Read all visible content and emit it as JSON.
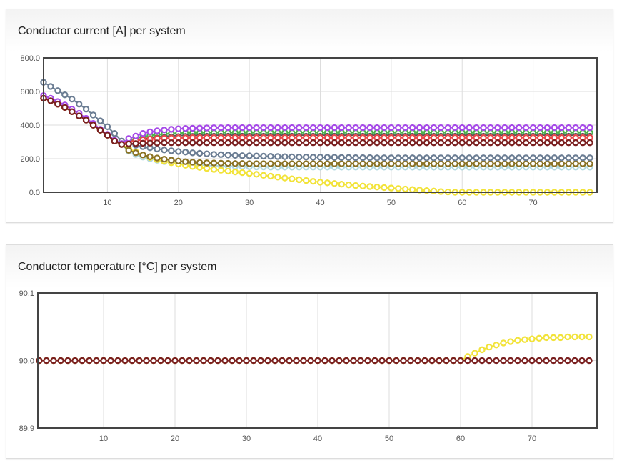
{
  "chart_data": [
    {
      "type": "line",
      "title": "Conductor current [A] per system",
      "x": [
        1,
        2,
        3,
        4,
        5,
        6,
        7,
        8,
        9,
        10,
        11,
        12,
        13,
        14,
        15,
        16,
        17,
        18,
        19,
        20,
        21,
        22,
        23,
        24,
        25,
        26,
        27,
        28,
        29,
        30,
        31,
        32,
        33,
        34,
        35,
        36,
        37,
        38,
        39,
        40,
        41,
        42,
        43,
        44,
        45,
        46,
        47,
        48,
        49,
        50,
        51,
        52,
        53,
        54,
        55,
        56,
        57,
        58,
        59,
        60,
        61,
        62,
        63,
        64,
        65,
        66,
        67,
        68,
        69,
        70,
        71,
        72,
        73,
        74,
        75,
        76,
        77,
        78
      ],
      "xlim": [
        1,
        79
      ],
      "ylim": [
        0,
        800
      ],
      "x_ticks": [
        "10",
        "20",
        "30",
        "40",
        "50",
        "60",
        "70"
      ],
      "y_ticks": [
        "0.0",
        "200.0",
        "400.0",
        "600.0",
        "800.0"
      ],
      "grid": true,
      "series": [
        {
          "color": "#b0d8e0",
          "values": [
            560,
            545,
            525,
            505,
            480,
            455,
            430,
            400,
            370,
            340,
            305,
            285,
            245,
            225,
            210,
            200,
            191,
            183,
            177,
            172,
            168,
            165,
            162,
            160,
            158,
            156,
            155,
            154,
            153,
            152,
            151,
            151,
            150,
            150,
            150,
            150,
            150,
            150,
            150,
            150,
            150,
            150,
            150,
            150,
            150,
            150,
            150,
            150,
            150,
            150,
            150,
            150,
            150,
            150,
            150,
            150,
            150,
            150,
            150,
            150,
            150,
            150,
            150,
            150,
            150,
            150,
            150,
            150,
            150,
            150,
            150,
            150,
            150,
            150,
            150,
            150,
            150,
            150
          ]
        },
        {
          "color": "#f2e33a",
          "values": [
            560,
            545,
            525,
            505,
            480,
            455,
            430,
            400,
            370,
            340,
            305,
            285,
            260,
            240,
            222,
            207,
            195,
            185,
            176,
            168,
            161,
            154,
            148,
            142,
            136,
            131,
            126,
            121,
            117,
            112,
            107,
            101,
            96,
            90,
            85,
            80,
            75,
            70,
            65,
            60,
            56,
            52,
            48,
            44,
            40,
            37,
            34,
            31,
            28,
            25,
            22,
            19,
            16,
            13,
            10,
            7,
            4,
            2,
            0,
            0,
            0,
            0,
            0,
            0,
            0,
            0,
            0,
            0,
            0,
            0,
            0,
            0,
            0,
            0,
            0,
            0,
            0,
            0
          ]
        },
        {
          "color": "#8a7224",
          "values": [
            560,
            545,
            525,
            505,
            480,
            455,
            430,
            400,
            370,
            340,
            305,
            285,
            250,
            235,
            222,
            212,
            204,
            197,
            191,
            186,
            182,
            179,
            177,
            175,
            174,
            173,
            172,
            171,
            171,
            170,
            170,
            170,
            170,
            170,
            170,
            170,
            170,
            170,
            170,
            170,
            170,
            170,
            170,
            170,
            170,
            170,
            170,
            170,
            170,
            170,
            170,
            170,
            170,
            170,
            170,
            170,
            170,
            170,
            170,
            170,
            170,
            170,
            170,
            170,
            170,
            170,
            170,
            170,
            170,
            170,
            170,
            170,
            170,
            170,
            170,
            170,
            170,
            170
          ]
        },
        {
          "color": "#6b7d93",
          "values": [
            655,
            630,
            605,
            580,
            555,
            525,
            495,
            460,
            425,
            390,
            350,
            305,
            290,
            280,
            272,
            265,
            258,
            252,
            247,
            243,
            239,
            235,
            232,
            229,
            226,
            224,
            222,
            220,
            218,
            217,
            216,
            215,
            214,
            213,
            212,
            211,
            210,
            210,
            209,
            209,
            208,
            208,
            207,
            207,
            206,
            206,
            206,
            205,
            205,
            205,
            205,
            205,
            205,
            205,
            205,
            205,
            205,
            205,
            205,
            205,
            205,
            205,
            205,
            205,
            205,
            205,
            205,
            205,
            205,
            205,
            205,
            205,
            205,
            205,
            205,
            205,
            205,
            205
          ]
        },
        {
          "color": "#4cb34c",
          "values": [
            560,
            545,
            525,
            505,
            480,
            455,
            430,
            400,
            370,
            340,
            305,
            288,
            305,
            320,
            330,
            338,
            343,
            347,
            350,
            352,
            353,
            354,
            354,
            355,
            355,
            355,
            355,
            355,
            355,
            355,
            355,
            355,
            355,
            355,
            355,
            355,
            355,
            355,
            355,
            355,
            355,
            355,
            355,
            355,
            355,
            355,
            355,
            355,
            355,
            355,
            355,
            355,
            355,
            355,
            355,
            355,
            355,
            355,
            355,
            355,
            355,
            355,
            355,
            355,
            355,
            355,
            355,
            355,
            355,
            355,
            355,
            355,
            355,
            355,
            355,
            355,
            355,
            355
          ]
        },
        {
          "color": "#555555",
          "small": true,
          "values": [
            560,
            545,
            525,
            505,
            480,
            455,
            430,
            400,
            370,
            340,
            305,
            288,
            300,
            310,
            318,
            325,
            330,
            333,
            336,
            338,
            339,
            339,
            340,
            340,
            340,
            340,
            340,
            340,
            340,
            340,
            340,
            340,
            340,
            340,
            340,
            340,
            340,
            340,
            340,
            340,
            340,
            340,
            340,
            340,
            340,
            340,
            340,
            340,
            340,
            340,
            340,
            340,
            340,
            340,
            340,
            340,
            340,
            340,
            340,
            340,
            340,
            340,
            340,
            340,
            340,
            340,
            340,
            340,
            340,
            340,
            340,
            340,
            340,
            340,
            340,
            340,
            340,
            340
          ]
        },
        {
          "color": "#e8474a",
          "values": [
            560,
            545,
            525,
            505,
            480,
            455,
            430,
            400,
            370,
            340,
            305,
            288,
            300,
            308,
            313,
            317,
            320,
            322,
            323,
            324,
            324,
            325,
            325,
            325,
            325,
            325,
            325,
            325,
            325,
            325,
            325,
            325,
            325,
            325,
            325,
            325,
            325,
            325,
            325,
            325,
            325,
            325,
            325,
            325,
            325,
            325,
            325,
            325,
            325,
            325,
            325,
            325,
            325,
            325,
            325,
            325,
            325,
            325,
            325,
            325,
            325,
            325,
            325,
            325,
            325,
            325,
            325,
            325,
            325,
            325,
            325,
            325,
            325,
            325,
            325,
            325,
            325,
            325
          ]
        },
        {
          "color": "#a64ae8",
          "values": [
            575,
            560,
            540,
            520,
            495,
            470,
            440,
            410,
            375,
            345,
            310,
            290,
            320,
            335,
            350,
            360,
            366,
            371,
            375,
            378,
            380,
            381,
            382,
            383,
            384,
            384,
            385,
            385,
            385,
            385,
            385,
            385,
            385,
            385,
            385,
            385,
            385,
            385,
            385,
            385,
            385,
            385,
            385,
            385,
            385,
            385,
            385,
            385,
            385,
            385,
            385,
            385,
            385,
            385,
            385,
            385,
            385,
            385,
            385,
            385,
            385,
            385,
            385,
            385,
            385,
            385,
            385,
            385,
            385,
            385,
            385,
            385,
            385,
            385,
            385,
            385,
            385,
            385
          ]
        },
        {
          "color": "#7a2020",
          "values": [
            560,
            545,
            525,
            505,
            480,
            455,
            430,
            400,
            370,
            340,
            305,
            285,
            288,
            290,
            292,
            293,
            294,
            295,
            295,
            295,
            295,
            295,
            295,
            295,
            295,
            295,
            295,
            295,
            295,
            295,
            295,
            295,
            295,
            295,
            295,
            295,
            295,
            295,
            295,
            295,
            295,
            295,
            295,
            295,
            295,
            295,
            295,
            295,
            295,
            295,
            295,
            295,
            295,
            295,
            295,
            295,
            295,
            295,
            295,
            295,
            295,
            295,
            295,
            295,
            295,
            295,
            295,
            295,
            295,
            295,
            295,
            295,
            295,
            295,
            295,
            295,
            295,
            295
          ]
        }
      ]
    },
    {
      "type": "line",
      "title": "Conductor temperature [°C] per system",
      "x": [
        1,
        2,
        3,
        4,
        5,
        6,
        7,
        8,
        9,
        10,
        11,
        12,
        13,
        14,
        15,
        16,
        17,
        18,
        19,
        20,
        21,
        22,
        23,
        24,
        25,
        26,
        27,
        28,
        29,
        30,
        31,
        32,
        33,
        34,
        35,
        36,
        37,
        38,
        39,
        40,
        41,
        42,
        43,
        44,
        45,
        46,
        47,
        48,
        49,
        50,
        51,
        52,
        53,
        54,
        55,
        56,
        57,
        58,
        59,
        60,
        61,
        62,
        63,
        64,
        65,
        66,
        67,
        68,
        69,
        70,
        71,
        72,
        73,
        74,
        75,
        76,
        77,
        78
      ],
      "xlim": [
        0.8,
        79.1
      ],
      "ylim": [
        89.9,
        90.1
      ],
      "x_ticks": [
        "10",
        "20",
        "30",
        "40",
        "50",
        "60",
        "70"
      ],
      "y_ticks": [
        "89.9",
        "90.0",
        "90.1"
      ],
      "grid": true,
      "series": [
        {
          "color": "#f2e33a",
          "values": [
            90,
            90,
            90,
            90,
            90,
            90,
            90,
            90,
            90,
            90,
            90,
            90,
            90,
            90,
            90,
            90,
            90,
            90,
            90,
            90,
            90,
            90,
            90,
            90,
            90,
            90,
            90,
            90,
            90,
            90,
            90,
            90,
            90,
            90,
            90,
            90,
            90,
            90,
            90,
            90,
            90,
            90,
            90,
            90,
            90,
            90,
            90,
            90,
            90,
            90,
            90,
            90,
            90,
            90,
            90,
            90,
            90,
            90,
            90,
            90,
            90.006,
            90.011,
            90.016,
            90.02,
            90.023,
            90.026,
            90.028,
            90.03,
            90.031,
            90.032,
            90.033,
            90.034,
            90.034,
            90.034,
            90.035,
            90.035,
            90.035,
            90.035
          ]
        },
        {
          "color": "#7a2020",
          "values": [
            90,
            90,
            90,
            90,
            90,
            90,
            90,
            90,
            90,
            90,
            90,
            90,
            90,
            90,
            90,
            90,
            90,
            90,
            90,
            90,
            90,
            90,
            90,
            90,
            90,
            90,
            90,
            90,
            90,
            90,
            90,
            90,
            90,
            90,
            90,
            90,
            90,
            90,
            90,
            90,
            90,
            90,
            90,
            90,
            90,
            90,
            90,
            90,
            90,
            90,
            90,
            90,
            90,
            90,
            90,
            90,
            90,
            90,
            90,
            90,
            90,
            90,
            90,
            90,
            90,
            90,
            90,
            90,
            90,
            90,
            90,
            90,
            90,
            90,
            90,
            90,
            90,
            90
          ]
        }
      ]
    }
  ]
}
